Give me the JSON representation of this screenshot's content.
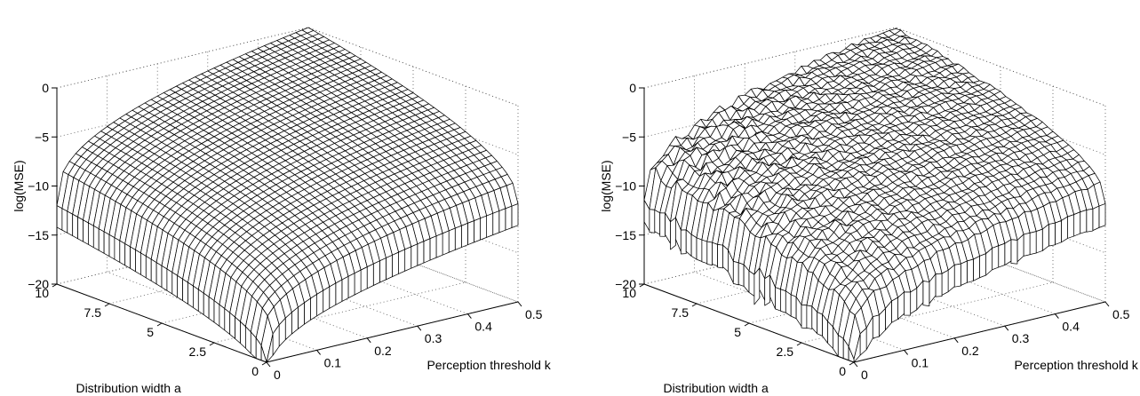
{
  "chart_data": [
    {
      "type": "surface",
      "panel": "left",
      "zlabel": "log(MSE)",
      "xlabel": "Perception threshold k",
      "ylabel": "Distribution width a",
      "xlim": [
        0,
        0.5
      ],
      "ylim": [
        0,
        10
      ],
      "zlim": [
        -20,
        0
      ],
      "x_ticks": [
        "0",
        "0.1",
        "0.2",
        "0.3",
        "0.4",
        "0.5"
      ],
      "y_ticks": [
        "0",
        "2.5",
        "5",
        "7.5",
        "10"
      ],
      "z_ticks": [
        "0",
        "−5",
        "−10",
        "−15",
        "−20"
      ],
      "grid": true,
      "noisy": false,
      "surface_samples": [
        {
          "k": 0.5,
          "a": 10,
          "log_mse": 0
        },
        {
          "k": 0.5,
          "a": 0,
          "log_mse": -10
        },
        {
          "k": 0,
          "a": 10,
          "log_mse": -12
        },
        {
          "k": 0,
          "a": 0,
          "log_mse": -20
        }
      ]
    },
    {
      "type": "surface",
      "panel": "right",
      "zlabel": "log(MSE)",
      "xlabel": "Perception threshold k",
      "ylabel": "Distribution width a",
      "xlim": [
        0,
        0.5
      ],
      "ylim": [
        0,
        10
      ],
      "zlim": [
        -20,
        0
      ],
      "x_ticks": [
        "0",
        "0.1",
        "0.2",
        "0.3",
        "0.4",
        "0.5"
      ],
      "y_ticks": [
        "0",
        "2.5",
        "5",
        "7.5",
        "10"
      ],
      "z_ticks": [
        "0",
        "−5",
        "−10",
        "−15",
        "−20"
      ],
      "grid": true,
      "noisy": true,
      "surface_samples": [
        {
          "k": 0.5,
          "a": 10,
          "log_mse": 0
        },
        {
          "k": 0.5,
          "a": 0,
          "log_mse": -10
        },
        {
          "k": 0,
          "a": 10,
          "log_mse": -12
        },
        {
          "k": 0,
          "a": 0,
          "log_mse": -20
        }
      ]
    }
  ]
}
